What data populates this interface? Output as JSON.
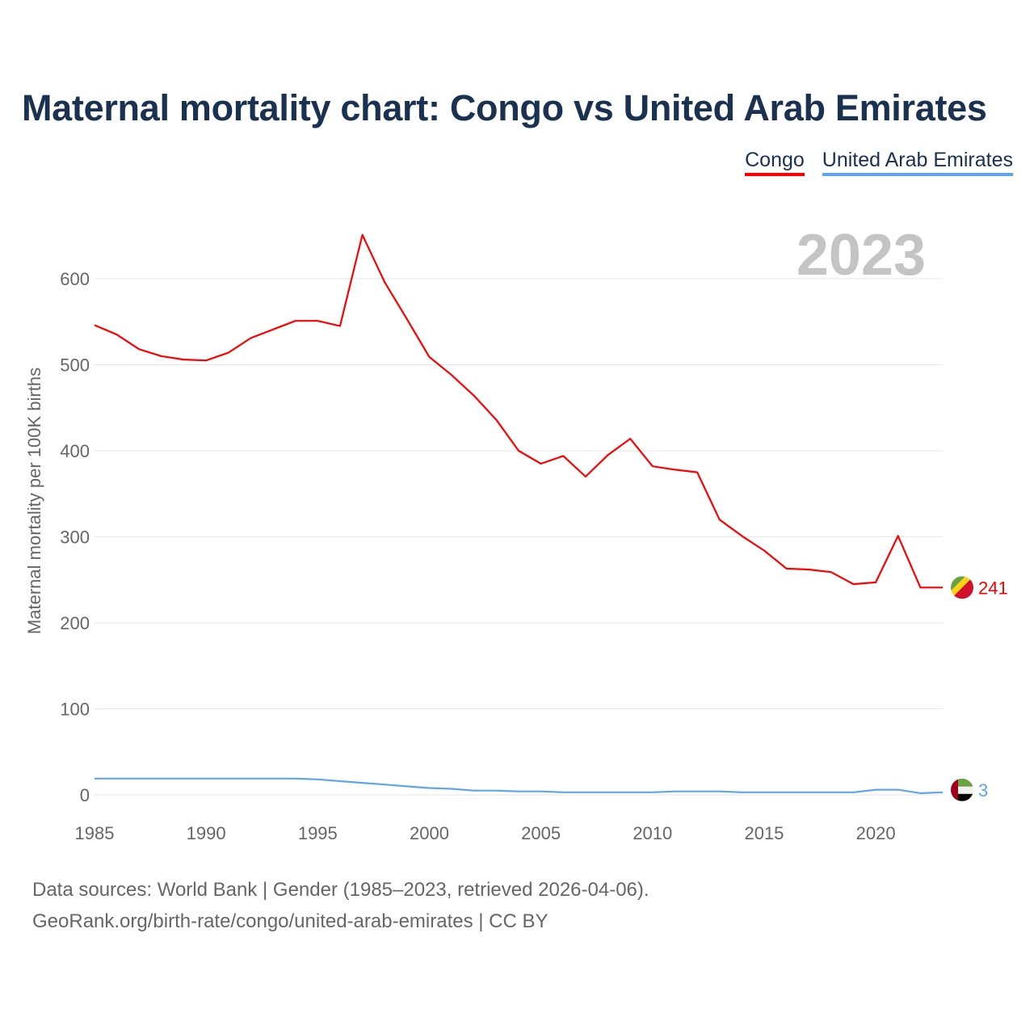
{
  "title": "Maternal mortality chart: Congo vs United Arab Emirates",
  "year_label": "2023",
  "footer": {
    "line1": "Data sources: World Bank | Gender (1985–2023, retrieved 2026-04-06).",
    "line2": "GeoRank.org/birth-rate/congo/united-arab-emirates | CC BY"
  },
  "chart_data": {
    "type": "line",
    "title": "Maternal mortality chart: Congo vs United Arab Emirates",
    "xlabel": "",
    "ylabel": "Maternal mortality per 100K births",
    "xlim": [
      1985,
      2023
    ],
    "ylim": [
      0,
      650
    ],
    "x_ticks": [
      "1985",
      "1990",
      "1995",
      "2000",
      "2005",
      "2010",
      "2015",
      "2020"
    ],
    "y_ticks": [
      "0",
      "100",
      "200",
      "300",
      "400",
      "500",
      "600"
    ],
    "grid": true,
    "legend_position": "top-right",
    "x": [
      1985,
      1986,
      1987,
      1988,
      1989,
      1990,
      1991,
      1992,
      1993,
      1994,
      1995,
      1996,
      1997,
      1998,
      1999,
      2000,
      2001,
      2002,
      2003,
      2004,
      2005,
      2006,
      2007,
      2008,
      2009,
      2010,
      2011,
      2012,
      2013,
      2014,
      2015,
      2016,
      2017,
      2018,
      2019,
      2020,
      2021,
      2022,
      2023
    ],
    "series": [
      {
        "name": "Congo",
        "color": "#ff0000",
        "end_label": "241",
        "values": [
          546,
          535,
          518,
          510,
          506,
          505,
          514,
          531,
          541,
          551,
          551,
          545,
          651,
          596,
          553,
          509,
          488,
          464,
          436,
          400,
          385,
          394,
          370,
          395,
          414,
          382,
          378,
          375,
          320,
          301,
          284,
          263,
          262,
          259,
          245,
          247,
          301,
          241,
          241
        ]
      },
      {
        "name": "United Arab Emirates",
        "color": "#5ea6ec",
        "end_label": "3",
        "values": [
          19,
          19,
          19,
          19,
          19,
          19,
          19,
          19,
          19,
          19,
          18,
          16,
          14,
          12,
          10,
          8,
          7,
          5,
          5,
          4,
          4,
          3,
          3,
          3,
          3,
          3,
          4,
          4,
          4,
          3,
          3,
          3,
          3,
          3,
          3,
          6,
          6,
          2,
          3
        ]
      }
    ]
  }
}
